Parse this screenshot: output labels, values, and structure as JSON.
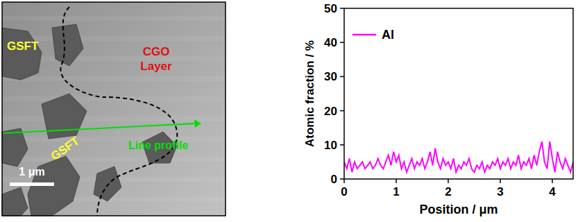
{
  "micrograph": {
    "labels": [
      {
        "text": "GSFT",
        "color": "#ffff33"
      },
      {
        "text": "CGO Layer",
        "color": "#e01010"
      },
      {
        "text": "GSFT",
        "color": "#ffff33"
      }
    ],
    "line_label": "Line profile",
    "line_color": "#00e000",
    "scale_bar": "1 μm"
  },
  "chart_data": {
    "type": "line",
    "x_label": "Position / μm",
    "y_label": "Atomic fraction / %",
    "xlim": [
      0,
      4.4
    ],
    "xticks": [
      0,
      1,
      2,
      3,
      4
    ],
    "ylim": [
      0,
      50
    ],
    "yticks": [
      0,
      10,
      20,
      30,
      40,
      50
    ],
    "legend": "upper left",
    "x": [
      0,
      0.05,
      0.1,
      0.15,
      0.2,
      0.25,
      0.3,
      0.35,
      0.4,
      0.45,
      0.5,
      0.55,
      0.6,
      0.65,
      0.7,
      0.75,
      0.8,
      0.85,
      0.9,
      0.95,
      1,
      1.05,
      1.1,
      1.15,
      1.2,
      1.25,
      1.3,
      1.35,
      1.4,
      1.45,
      1.5,
      1.55,
      1.6,
      1.65,
      1.7,
      1.75,
      1.8,
      1.85,
      1.9,
      1.95,
      2,
      2.05,
      2.1,
      2.15,
      2.2,
      2.25,
      2.3,
      2.35,
      2.4,
      2.45,
      2.5,
      2.55,
      2.6,
      2.65,
      2.7,
      2.75,
      2.8,
      2.85,
      2.9,
      2.95,
      3,
      3.05,
      3.1,
      3.15,
      3.2,
      3.25,
      3.3,
      3.35,
      3.4,
      3.45,
      3.5,
      3.55,
      3.6,
      3.65,
      3.7,
      3.75,
      3.8,
      3.85,
      3.9,
      3.95,
      4,
      4.05,
      4.1,
      4.15,
      4.2,
      4.25,
      4.3,
      4.35,
      4.4
    ],
    "series": [
      {
        "name": "Al",
        "color": "#ff00ff",
        "values": [
          5,
          3,
          6,
          2,
          5,
          3,
          4,
          5,
          3,
          4,
          5,
          3,
          4,
          6,
          4,
          3,
          5,
          7,
          4,
          8,
          5,
          7,
          3,
          5,
          2,
          4,
          6,
          3,
          5,
          4,
          6,
          3,
          5,
          8,
          4,
          9,
          5,
          3,
          6,
          4,
          5,
          3,
          6,
          2,
          4,
          3,
          5,
          4,
          6,
          3,
          2,
          4,
          3,
          5,
          2,
          4,
          3,
          5,
          4,
          6,
          3,
          5,
          4,
          6,
          3,
          5,
          4,
          7,
          3,
          5,
          4,
          6,
          3,
          7,
          4,
          8,
          11,
          5,
          3,
          11,
          6,
          2,
          8,
          5,
          3,
          6,
          4,
          2,
          5
        ]
      }
    ]
  }
}
